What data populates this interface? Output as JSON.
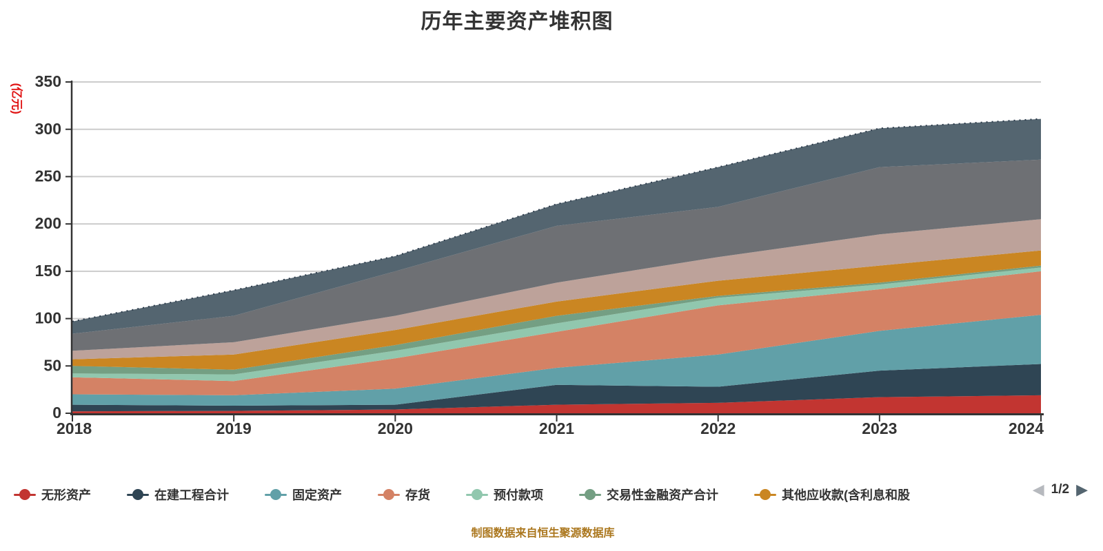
{
  "title": "历年主要资产堆积图",
  "footer": "制图数据来自恒生聚源数据库",
  "y_axis": {
    "name": "(亿元)",
    "name_color": "#e01414"
  },
  "legend": {
    "items": [
      {
        "label": "无形资产",
        "color": "#c23531"
      },
      {
        "label": "在建工程合计",
        "color": "#2f4554"
      },
      {
        "label": "固定资产",
        "color": "#61a0a8"
      },
      {
        "label": "存货",
        "color": "#d48265"
      },
      {
        "label": "预付款项",
        "color": "#91c7ae"
      },
      {
        "label": "交易性金融资产合计",
        "color": "#749f83"
      },
      {
        "label": "其他应收款(含利息和股",
        "color": "#ca8622"
      }
    ],
    "pagination": {
      "current": "1/2",
      "prev_icon": "◀",
      "next_icon": "▶"
    }
  },
  "chart_data": {
    "type": "area",
    "stacked": true,
    "x": [
      "2018",
      "2019",
      "2020",
      "2021",
      "2022",
      "2023",
      "2024"
    ],
    "series": [
      {
        "name": "无形资产",
        "color": "#c23531",
        "values": [
          2,
          2.5,
          4,
          9,
          11,
          17,
          19
        ]
      },
      {
        "name": "在建工程合计",
        "color": "#2f4554",
        "values": [
          7,
          5.5,
          5,
          21,
          17,
          28,
          33
        ]
      },
      {
        "name": "固定资产",
        "color": "#61a0a8",
        "values": [
          11,
          11,
          17,
          18,
          34,
          42,
          52
        ]
      },
      {
        "name": "存货",
        "color": "#d48265",
        "values": [
          18,
          15,
          32,
          38,
          52,
          44,
          46
        ]
      },
      {
        "name": "预付款项",
        "color": "#91c7ae",
        "values": [
          4,
          7,
          8,
          9,
          8,
          5,
          4
        ]
      },
      {
        "name": "交易性金融资产合计",
        "color": "#749f83",
        "values": [
          8,
          5,
          6,
          8,
          2,
          2,
          2
        ]
      },
      {
        "name": "其他应收款(含利息和股",
        "color": "#ca8622",
        "values": [
          7,
          16,
          16,
          15,
          16,
          18,
          16
        ]
      },
      {
        "name": "",
        "color": "#bda29a",
        "values": [
          9,
          13,
          15,
          20,
          25,
          33,
          33
        ]
      },
      {
        "name": "",
        "color": "#6e7074",
        "values": [
          18,
          28,
          47,
          60,
          53,
          71,
          63
        ]
      },
      {
        "name": "",
        "color": "#546570",
        "values": [
          13,
          27,
          16,
          23,
          42,
          41,
          43
        ]
      }
    ],
    "stack_totals": [
      97,
      130,
      166,
      221,
      260,
      301,
      311
    ],
    "title": "历年主要资产堆积图",
    "xlabel": "",
    "ylabel": "(亿元)",
    "ylim": [
      0,
      350
    ],
    "ytick_step": 50,
    "grid": true,
    "gridline_color": "#cccccc",
    "axis_color": "#333333",
    "legend_position": "bottom",
    "legend_note": "legend page 1/2 — top three bands belong to series whose legend labels are on page 2"
  }
}
